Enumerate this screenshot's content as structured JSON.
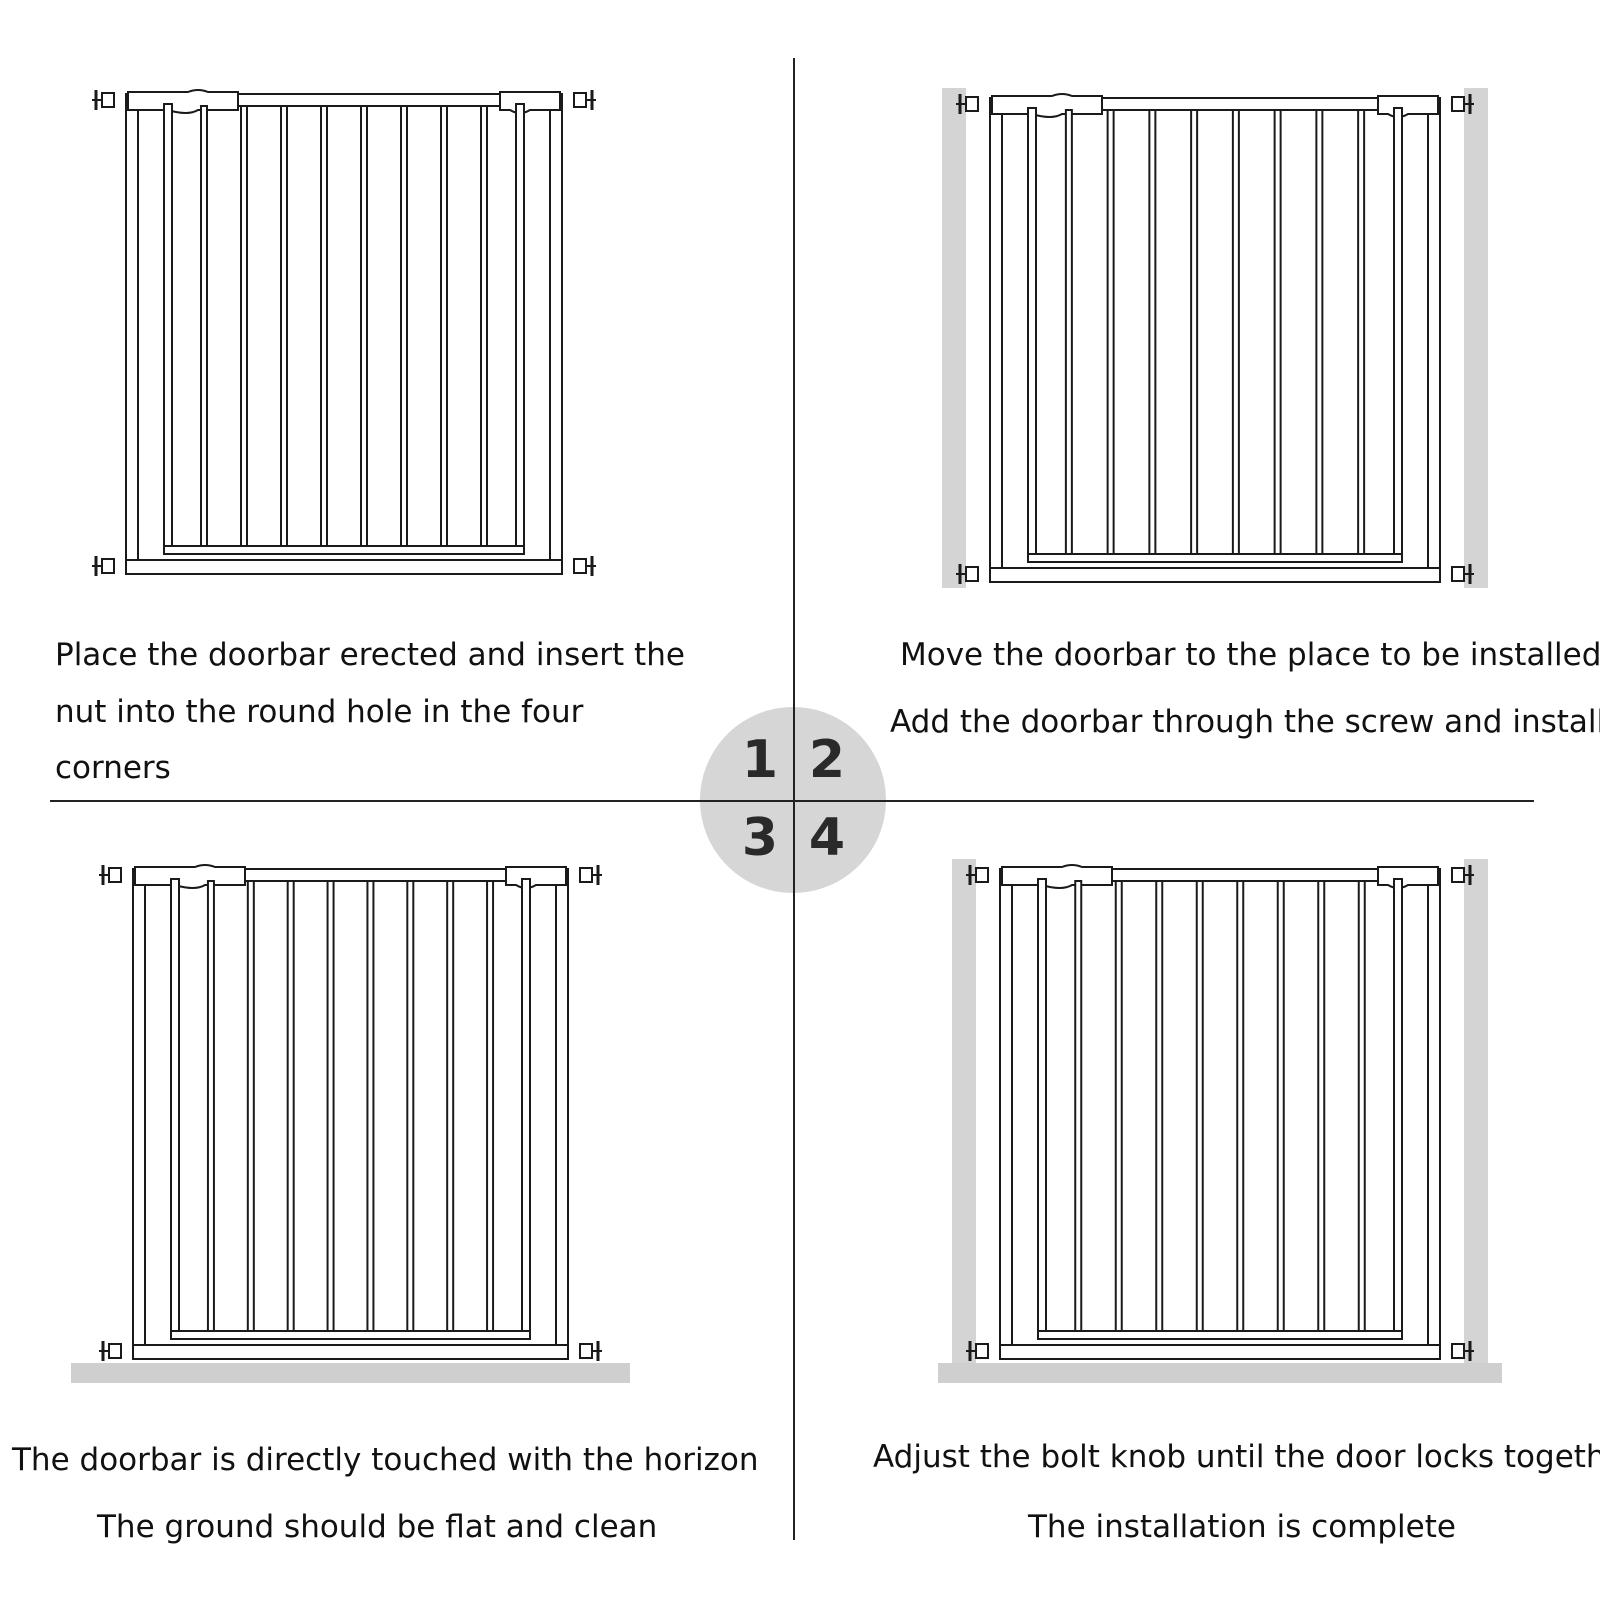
{
  "steps": [
    {
      "number": "1",
      "lines": [
        "Place the doorbar erected and insert the",
        "nut into the round hole in the four",
        "corners"
      ]
    },
    {
      "number": "2",
      "lines": [
        "Move the doorbar to the place to be installed",
        "Add the doorbar through the screw and install"
      ]
    },
    {
      "number": "3",
      "lines": [
        "The doorbar is directly touched with the horizon",
        "The ground should be flat and clean"
      ]
    },
    {
      "number": "4",
      "lines": [
        "Adjust the bolt knob until the door locks together",
        "The installation is complete"
      ]
    }
  ],
  "colors": {
    "wall": "#d4d4d4",
    "floor": "#cfcfcf",
    "line": "#1a1a1a",
    "circle": "#d6d6d6"
  }
}
